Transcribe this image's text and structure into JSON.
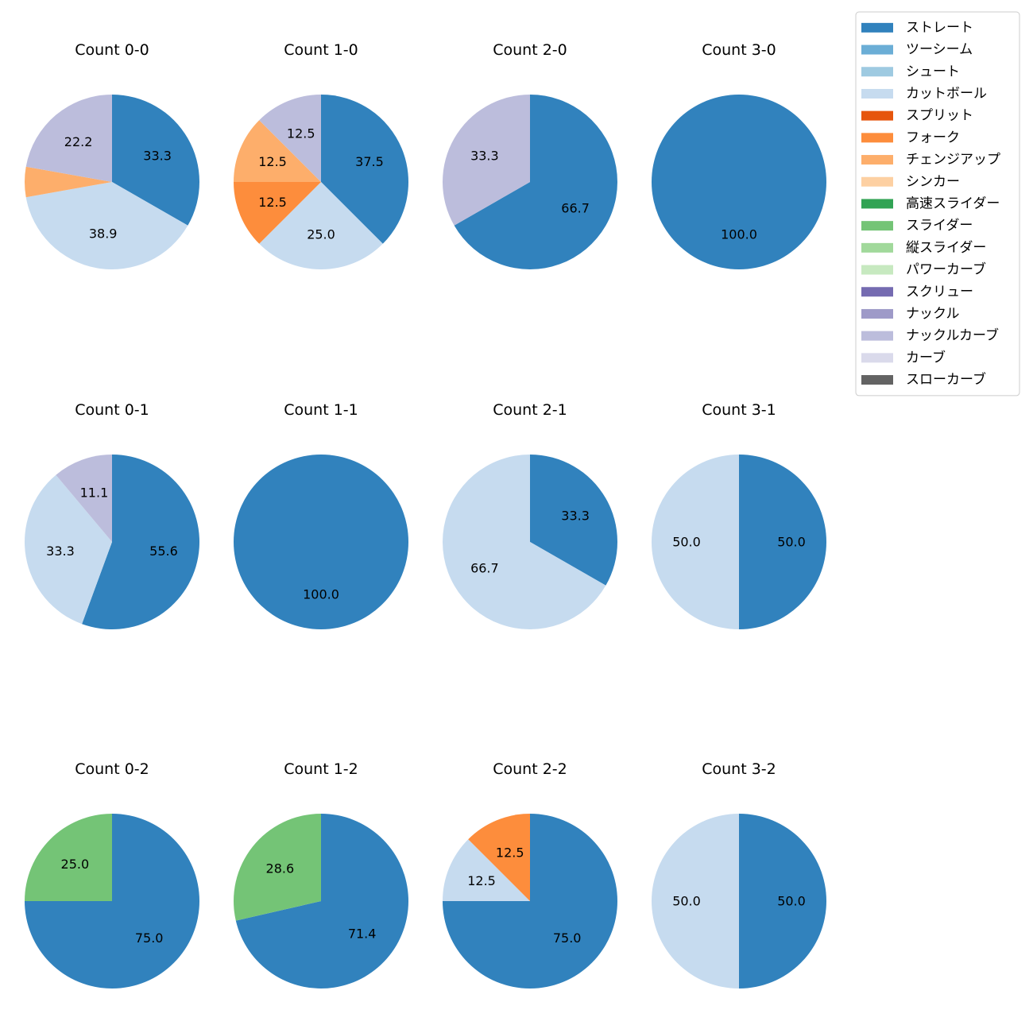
{
  "chart_data": {
    "type": "pie",
    "legend": {
      "placement": "top-right",
      "entries": [
        {
          "name": "ストレート",
          "color": "#3182bd"
        },
        {
          "name": "ツーシーム",
          "color": "#6baed6"
        },
        {
          "name": "シュート",
          "color": "#9ecae1"
        },
        {
          "name": "カットボール",
          "color": "#c6dbef"
        },
        {
          "name": "スプリット",
          "color": "#e6550d"
        },
        {
          "name": "フォーク",
          "color": "#fd8d3c"
        },
        {
          "name": "チェンジアップ",
          "color": "#fdae6b"
        },
        {
          "name": "シンカー",
          "color": "#fdd0a2"
        },
        {
          "name": "高速スライダー",
          "color": "#31a354"
        },
        {
          "name": "スライダー",
          "color": "#74c476"
        },
        {
          "name": "縦スライダー",
          "color": "#a1d99b"
        },
        {
          "name": "パワーカーブ",
          "color": "#c7e9c0"
        },
        {
          "name": "スクリュー",
          "color": "#756bb1"
        },
        {
          "name": "ナックル",
          "color": "#9e9ac8"
        },
        {
          "name": "ナックルカーブ",
          "color": "#bcbddc"
        },
        {
          "name": "カーブ",
          "color": "#dadaeb"
        },
        {
          "name": "スローカーブ",
          "color": "#636363"
        }
      ]
    },
    "pies": [
      {
        "title": "Count 0-0",
        "slices": [
          {
            "pitch": "ストレート",
            "value": 33.3,
            "label": "33.3"
          },
          {
            "pitch": "カットボール",
            "value": 38.9,
            "label": "38.9"
          },
          {
            "pitch": "チェンジアップ",
            "value": 5.6,
            "label": ""
          },
          {
            "pitch": "ナックルカーブ",
            "value": 22.2,
            "label": "22.2"
          }
        ]
      },
      {
        "title": "Count 1-0",
        "slices": [
          {
            "pitch": "ストレート",
            "value": 37.5,
            "label": "37.5"
          },
          {
            "pitch": "カットボール",
            "value": 25.0,
            "label": "25.0"
          },
          {
            "pitch": "フォーク",
            "value": 12.5,
            "label": "12.5"
          },
          {
            "pitch": "チェンジアップ",
            "value": 12.5,
            "label": "12.5"
          },
          {
            "pitch": "ナックルカーブ",
            "value": 12.5,
            "label": "12.5"
          }
        ]
      },
      {
        "title": "Count 2-0",
        "slices": [
          {
            "pitch": "ストレート",
            "value": 66.7,
            "label": "66.7"
          },
          {
            "pitch": "ナックルカーブ",
            "value": 33.3,
            "label": "33.3"
          }
        ]
      },
      {
        "title": "Count 3-0",
        "slices": [
          {
            "pitch": "ストレート",
            "value": 100.0,
            "label": "100.0"
          }
        ]
      },
      {
        "title": "Count 0-1",
        "slices": [
          {
            "pitch": "ストレート",
            "value": 55.6,
            "label": "55.6"
          },
          {
            "pitch": "カットボール",
            "value": 33.3,
            "label": "33.3"
          },
          {
            "pitch": "ナックルカーブ",
            "value": 11.1,
            "label": "11.1"
          }
        ]
      },
      {
        "title": "Count 1-1",
        "slices": [
          {
            "pitch": "ストレート",
            "value": 100.0,
            "label": "100.0"
          }
        ]
      },
      {
        "title": "Count 2-1",
        "slices": [
          {
            "pitch": "ストレート",
            "value": 33.3,
            "label": "33.3"
          },
          {
            "pitch": "カットボール",
            "value": 66.7,
            "label": "66.7"
          }
        ]
      },
      {
        "title": "Count 3-1",
        "slices": [
          {
            "pitch": "ストレート",
            "value": 50.0,
            "label": "50.0"
          },
          {
            "pitch": "カットボール",
            "value": 50.0,
            "label": "50.0"
          }
        ]
      },
      {
        "title": "Count 0-2",
        "slices": [
          {
            "pitch": "ストレート",
            "value": 75.0,
            "label": "75.0"
          },
          {
            "pitch": "スライダー",
            "value": 25.0,
            "label": "25.0"
          }
        ]
      },
      {
        "title": "Count 1-2",
        "slices": [
          {
            "pitch": "ストレート",
            "value": 71.4,
            "label": "71.4"
          },
          {
            "pitch": "スライダー",
            "value": 28.6,
            "label": "28.6"
          }
        ]
      },
      {
        "title": "Count 2-2",
        "slices": [
          {
            "pitch": "ストレート",
            "value": 75.0,
            "label": "75.0"
          },
          {
            "pitch": "カットボール",
            "value": 12.5,
            "label": "12.5"
          },
          {
            "pitch": "フォーク",
            "value": 12.5,
            "label": "12.5"
          }
        ]
      },
      {
        "title": "Count 3-2",
        "slices": [
          {
            "pitch": "ストレート",
            "value": 50.0,
            "label": "50.0"
          },
          {
            "pitch": "カットボール",
            "value": 50.0,
            "label": "50.0"
          }
        ]
      }
    ]
  }
}
